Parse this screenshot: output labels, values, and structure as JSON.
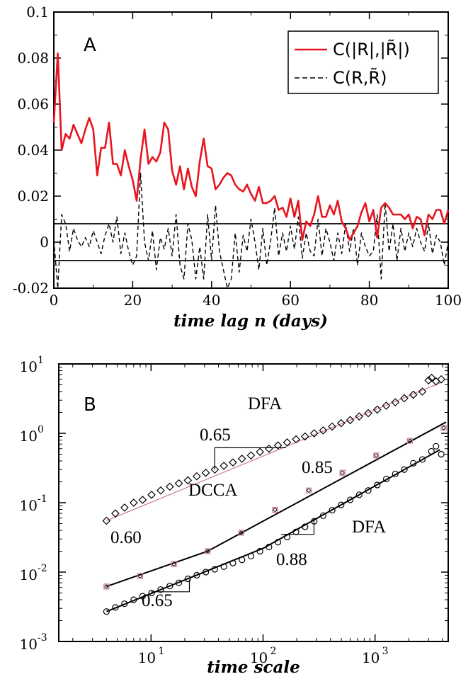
{
  "chart_data": [
    {
      "id": "A",
      "type": "line",
      "panel_letter": "A",
      "xlabel": "time lag n (days)",
      "ylabel": "",
      "xlim": [
        0,
        100
      ],
      "ylim": [
        -0.02,
        0.1
      ],
      "x_ticks": [
        0,
        20,
        40,
        60,
        80,
        100
      ],
      "x_tick_labels": [
        "0",
        "20",
        "40",
        "60",
        "80",
        "100"
      ],
      "y_ticks": [
        -0.02,
        0,
        0.02,
        0.04,
        0.06,
        0.08,
        0.1
      ],
      "y_tick_labels": [
        "-0.02",
        "0",
        "0.02",
        "0.04",
        "0.06",
        "0.08",
        "0.1"
      ],
      "legend_position": "top-right",
      "series": [
        {
          "name": "C(|R|,|R̃|)",
          "color": "#e8141e",
          "style": "solid",
          "x": [
            0,
            1,
            2,
            3,
            4,
            5,
            6,
            7,
            8,
            9,
            10,
            11,
            12,
            13,
            14,
            15,
            16,
            17,
            18,
            19,
            20,
            21,
            22,
            23,
            24,
            25,
            26,
            27,
            28,
            29,
            30,
            31,
            32,
            33,
            34,
            35,
            36,
            37,
            38,
            39,
            40,
            41,
            42,
            43,
            44,
            45,
            46,
            47,
            48,
            49,
            50,
            51,
            52,
            53,
            54,
            55,
            56,
            57,
            58,
            59,
            60,
            61,
            62,
            63,
            64,
            65,
            66,
            67,
            68,
            69,
            70,
            71,
            72,
            73,
            74,
            75,
            76,
            77,
            78,
            79,
            80,
            81,
            82,
            83,
            84,
            85,
            86,
            87,
            88,
            89,
            90,
            91,
            92,
            93,
            94,
            95,
            96,
            97,
            98,
            99,
            100
          ],
          "values": [
            0.052,
            0.082,
            0.04,
            0.047,
            0.045,
            0.051,
            0.047,
            0.043,
            0.049,
            0.054,
            0.049,
            0.029,
            0.041,
            0.041,
            0.052,
            0.034,
            0.034,
            0.029,
            0.04,
            0.033,
            0.027,
            0.018,
            0.036,
            0.049,
            0.034,
            0.037,
            0.035,
            0.039,
            0.052,
            0.049,
            0.031,
            0.025,
            0.033,
            0.023,
            0.032,
            0.024,
            0.02,
            0.035,
            0.045,
            0.033,
            0.032,
            0.023,
            0.025,
            0.028,
            0.03,
            0.029,
            0.025,
            0.023,
            0.022,
            0.025,
            0.021,
            0.018,
            0.024,
            0.017,
            0.017,
            0.018,
            0.02,
            0.014,
            0.015,
            0.011,
            0.019,
            0.011,
            0.018,
            0.001,
            0.009,
            0.007,
            0.012,
            0.02,
            0.011,
            0.011,
            0.016,
            0.012,
            0.018,
            0.009,
            0.006,
            0.001,
            0.004,
            0.007,
            0.013,
            0.017,
            0.009,
            0.014,
            0.002,
            0.015,
            0.017,
            0.015,
            0.012,
            0.012,
            0.012,
            0.01,
            0.012,
            0.006,
            0.011,
            0.01,
            0.003,
            0.012,
            0.01,
            0.014,
            0.014,
            0.008,
            0.014
          ]
        },
        {
          "name": "C(R,R̃)",
          "color": "#000000",
          "style": "dashed",
          "x": [
            0,
            1,
            2,
            3,
            4,
            5,
            6,
            7,
            8,
            9,
            10,
            11,
            12,
            13,
            14,
            15,
            16,
            17,
            18,
            19,
            20,
            21,
            22,
            23,
            24,
            25,
            26,
            27,
            28,
            29,
            30,
            31,
            32,
            33,
            34,
            35,
            36,
            37,
            38,
            39,
            40,
            41,
            42,
            43,
            44,
            45,
            46,
            47,
            48,
            49,
            50,
            51,
            52,
            53,
            54,
            55,
            56,
            57,
            58,
            59,
            60,
            61,
            62,
            63,
            64,
            65,
            66,
            67,
            68,
            69,
            70,
            71,
            72,
            73,
            74,
            75,
            76,
            77,
            78,
            79,
            80,
            81,
            82,
            83,
            84,
            85,
            86,
            87,
            88,
            89,
            90,
            91,
            92,
            93,
            94,
            95,
            96,
            97,
            98,
            99,
            100
          ],
          "values": [
            0.001,
            -0.02,
            0.012,
            0.008,
            -0.004,
            0.006,
            0.001,
            -0.002,
            0.002,
            -0.002,
            0.005,
            0.0,
            -0.005,
            0.003,
            0.008,
            0.0,
            0.011,
            -0.005,
            0.004,
            -0.004,
            -0.01,
            -0.006,
            0.03,
            0.0,
            -0.008,
            0.005,
            -0.012,
            0.002,
            -0.003,
            0.006,
            -0.006,
            0.012,
            -0.01,
            -0.016,
            0.008,
            0.001,
            -0.016,
            -0.002,
            -0.016,
            0.012,
            -0.008,
            0.016,
            -0.004,
            -0.012,
            -0.02,
            -0.016,
            0.004,
            -0.013,
            0.003,
            -0.004,
            0.01,
            0.0,
            -0.012,
            0.006,
            -0.01,
            0.001,
            0.015,
            -0.006,
            0.004,
            -0.004,
            0.007,
            -0.003,
            0.011,
            -0.007,
            0.004,
            -0.004,
            -0.006,
            0.01,
            -0.006,
            0.006,
            0.0,
            -0.008,
            0.004,
            -0.005,
            0.008,
            -0.004,
            0.006,
            -0.01,
            0.004,
            -0.002,
            -0.006,
            -0.004,
            0.012,
            -0.016,
            0.017,
            -0.004,
            0.008,
            -0.008,
            0.006,
            -0.004,
            0.004,
            -0.002,
            0.006,
            0.0,
            -0.004,
            0.008,
            -0.005,
            0.003,
            0.0,
            -0.01,
            0.0
          ]
        }
      ],
      "reference_lines": [
        0.008,
        -0.008
      ]
    },
    {
      "id": "B",
      "type": "scatter",
      "panel_letter": "B",
      "xlabel": "time scale",
      "ylabel": "",
      "x_scale": "log",
      "y_scale": "log",
      "xlim": [
        1.5,
        4500
      ],
      "ylim": [
        0.001,
        10
      ],
      "x_tick_labels": [
        "10^1",
        "10^2",
        "10^3"
      ],
      "y_tick_labels": [
        "10^-3",
        "10^-2",
        "10^-1",
        "10^0",
        "10^1"
      ],
      "annotations": [
        "DFA",
        "0.65",
        "0.85",
        "DCCA",
        "0.60",
        "DFA",
        "0.88",
        "0.65"
      ],
      "series": [
        {
          "name": "DFA (upper)",
          "marker": "diamond",
          "x": [
            4,
            4.8,
            5.8,
            7,
            8.4,
            10.1,
            12.2,
            14.7,
            17.7,
            21.3,
            25.6,
            30.8,
            37.1,
            44.7,
            53.8,
            64.8,
            78,
            93.9,
            113,
            136,
            164,
            197,
            237,
            286,
            344,
            414,
            498,
            600,
            722,
            869,
            1046,
            1259,
            1516,
            1825,
            2197,
            2645,
            3000,
            3200,
            3500,
            3900
          ],
          "values": [
            0.055,
            0.07,
            0.085,
            0.1,
            0.11,
            0.13,
            0.15,
            0.17,
            0.19,
            0.21,
            0.24,
            0.27,
            0.3,
            0.34,
            0.38,
            0.43,
            0.48,
            0.54,
            0.6,
            0.67,
            0.74,
            0.82,
            0.9,
            1.0,
            1.1,
            1.25,
            1.4,
            1.55,
            1.75,
            1.95,
            2.2,
            2.5,
            2.8,
            3.2,
            3.6,
            4.0,
            5.8,
            6.3,
            5.6,
            6.0
          ]
        },
        {
          "name": "DCCA",
          "marker": "square",
          "x": [
            4,
            8,
            16,
            32,
            64,
            128,
            256,
            512,
            1024,
            2048,
            4096
          ],
          "values": [
            0.0062,
            0.0088,
            0.013,
            0.02,
            0.037,
            0.079,
            0.15,
            0.27,
            0.48,
            0.78,
            1.2
          ]
        },
        {
          "name": "DFA (lower)",
          "marker": "circle",
          "x": [
            4,
            4.8,
            5.8,
            7,
            8.4,
            10.1,
            12.2,
            14.7,
            17.7,
            21.3,
            25.6,
            30.8,
            37.1,
            44.7,
            53.8,
            64.8,
            78,
            93.9,
            113,
            136,
            164,
            197,
            237,
            286,
            344,
            414,
            498,
            600,
            722,
            869,
            1046,
            1259,
            1516,
            1825,
            2197,
            2645,
            3182,
            3500,
            3900
          ],
          "values": [
            0.0027,
            0.0031,
            0.0035,
            0.004,
            0.0045,
            0.005,
            0.0056,
            0.0063,
            0.007,
            0.008,
            0.009,
            0.01,
            0.011,
            0.012,
            0.0135,
            0.015,
            0.017,
            0.02,
            0.023,
            0.027,
            0.032,
            0.038,
            0.045,
            0.054,
            0.065,
            0.078,
            0.093,
            0.11,
            0.13,
            0.15,
            0.18,
            0.22,
            0.26,
            0.3,
            0.37,
            0.42,
            0.55,
            0.65,
            0.5
          ]
        }
      ]
    }
  ]
}
